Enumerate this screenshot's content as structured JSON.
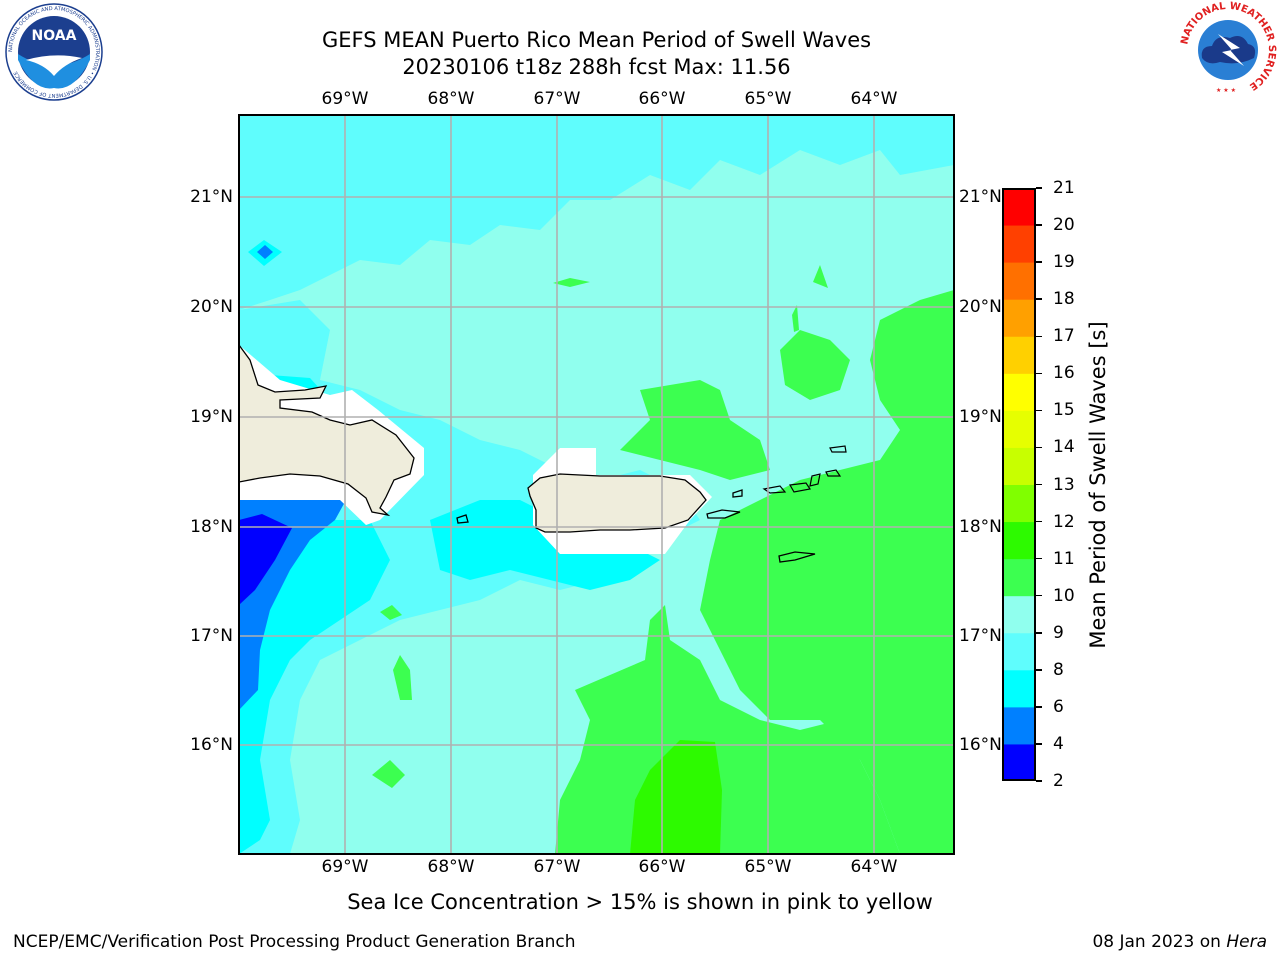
{
  "title_line1": "GEFS MEAN Puerto Rico Mean Period of Swell Waves",
  "title_line2": "20230106 t18z 288h fcst   Max: 11.56",
  "lon_ticks": [
    "69°W",
    "68°W",
    "67°W",
    "66°W",
    "65°W",
    "64°W"
  ],
  "lat_ticks": [
    "21°N",
    "20°N",
    "19°N",
    "18°N",
    "17°N",
    "16°N"
  ],
  "colorbar": {
    "label": "Mean Period of Swell Waves [s]",
    "tick_labels": [
      "2",
      "4",
      "6",
      "8",
      "9",
      "10",
      "11",
      "12",
      "13",
      "14",
      "15",
      "16",
      "17",
      "18",
      "19",
      "20",
      "21"
    ],
    "colors": [
      "#0000ff",
      "#0080ff",
      "#00ffff",
      "#5ffdfd",
      "#90ffee",
      "#3cff50",
      "#2dfa00",
      "#80ff00",
      "#c8ff00",
      "#e6ff00",
      "#ffff00",
      "#ffd000",
      "#ffa000",
      "#ff7000",
      "#ff4000",
      "#ff0000"
    ]
  },
  "sea_ice_note": "Sea Ice Concentration > 15% is shown in pink to yellow",
  "footer_left": "NCEP/EMC/Verification Post Processing Product Generation Branch",
  "footer_date": "08 Jan 2023 on ",
  "footer_host": "Hera",
  "logos": {
    "noaa_text": "NOAA",
    "noaa_ring": "NATIONAL OCEANIC AND ATMOSPHERIC ADMINISTRATION • U.S. DEPARTMENT OF COMMERCE",
    "nws_ring": "NATIONAL WEATHER SERVICE"
  }
}
